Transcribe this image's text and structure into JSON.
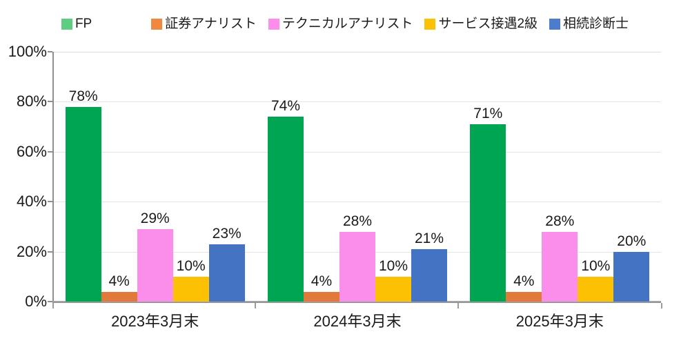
{
  "background_color": "#FFFFFF",
  "text_color": "#1A1A1A",
  "axis_color": "#8F8F8F",
  "gridline_color": "#E4E4E4",
  "chart_data": {
    "type": "bar",
    "title": "",
    "xlabel": "",
    "ylabel": "",
    "categories": [
      "2023年3月末",
      "2024年3月末",
      "2025年3月末"
    ],
    "series": [
      {
        "name": "FP",
        "color": "#00A551",
        "legend_color": "#5FCC80",
        "values": [
          78,
          74,
          71
        ]
      },
      {
        "name": "証券アナリスト",
        "color": "#E1793B",
        "legend_color": "#ED8A3F",
        "values": [
          4,
          4,
          4
        ]
      },
      {
        "name": "テクニカルアナリスト",
        "color": "#FB8DEB",
        "legend_color": "#FB8DEB",
        "values": [
          29,
          28,
          28
        ]
      },
      {
        "name": "サービス接遇2級",
        "color": "#FCC103",
        "legend_color": "#FCC103",
        "values": [
          10,
          10,
          10
        ]
      },
      {
        "name": "相続診断士",
        "color": "#4573C4",
        "legend_color": "#4C7CCB",
        "values": [
          23,
          21,
          20
        ]
      }
    ],
    "ylim": [
      0,
      100
    ],
    "yticks": [
      "0%",
      "20%",
      "40%",
      "60%",
      "80%",
      "100%"
    ],
    "ytick_values": [
      0,
      20,
      40,
      60,
      80,
      100
    ],
    "value_label_suffix": "%",
    "grid": true,
    "legend_position": "top"
  }
}
